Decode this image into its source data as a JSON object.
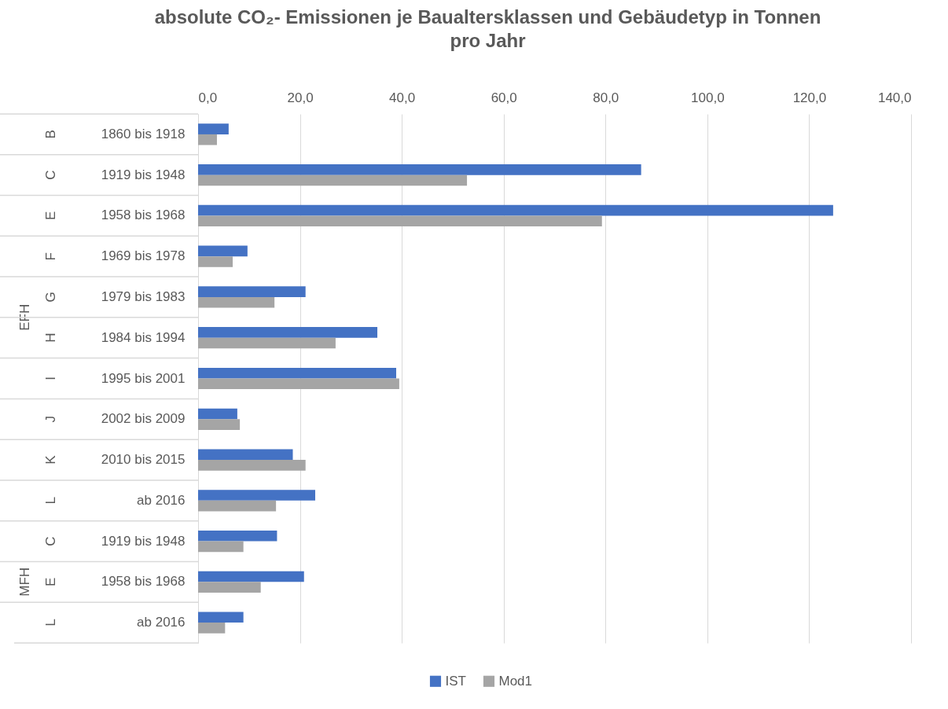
{
  "chart_data": {
    "type": "bar",
    "orientation": "horizontal",
    "title": "absolute CO₂- Emissionen je Baualtersklassen und Gebäudetyp in Tonnen pro Jahr",
    "categories": [
      "1860 bis 1918",
      "1919 bis 1948",
      "1958 bis 1968",
      "1969 bis 1978",
      "1979 bis 1983",
      "1984 bis 1994",
      "1995 bis 2001",
      "2002 bis 2009",
      "2010 bis 2015",
      "ab 2016",
      "1919 bis 1948",
      "1958 bis 1968",
      "ab 2016"
    ],
    "annotations": [
      "B",
      "C",
      "E",
      "F",
      "G",
      "H",
      "I",
      "J",
      "K",
      "L",
      "C",
      "E",
      "L",
      "EFH",
      "MFH"
    ],
    "series": [
      {
        "name": "IST",
        "color": "#4472c4",
        "values": [
          6.0,
          87.0,
          124.7,
          9.7,
          21.1,
          35.2,
          38.9,
          7.7,
          18.6,
          23.0,
          15.5,
          20.8,
          8.9
        ]
      },
      {
        "name": "Mod1",
        "color": "#a5a5a5",
        "values": [
          3.7,
          52.8,
          79.3,
          6.8,
          15.0,
          27.0,
          39.5,
          8.2,
          21.1,
          15.3,
          8.9,
          12.3,
          5.3
        ]
      }
    ],
    "xlim": [
      0,
      140
    ],
    "xticks": [
      {
        "value": 0,
        "label": "0,0"
      },
      {
        "value": 20,
        "label": "20,0"
      },
      {
        "value": 40,
        "label": "40,0"
      },
      {
        "value": 60,
        "label": "60,0"
      },
      {
        "value": 80,
        "label": "80,0"
      },
      {
        "value": 100,
        "label": "100,0"
      },
      {
        "value": 120,
        "label": "120,0"
      },
      {
        "value": 140,
        "label": "140,0"
      }
    ],
    "grid": "x",
    "legend": "bottom"
  }
}
